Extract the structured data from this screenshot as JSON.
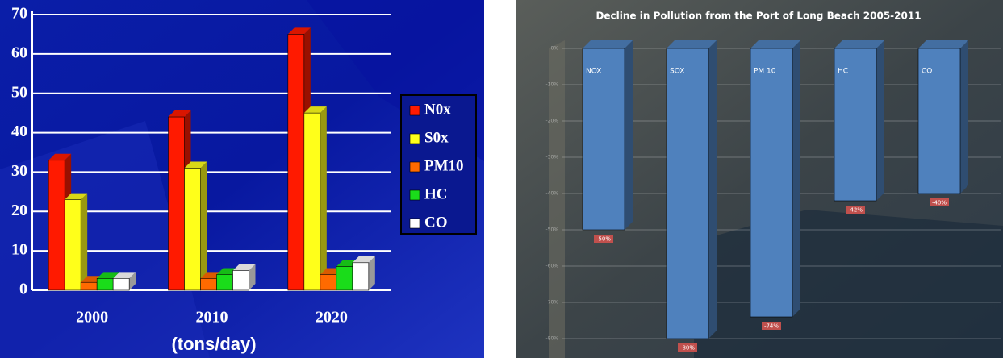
{
  "chart_data": [
    {
      "type": "bar",
      "categories": [
        "2000",
        "2010",
        "2020"
      ],
      "series": [
        {
          "name": "N0x",
          "color": "#ff1a00",
          "values": [
            33,
            44,
            65
          ]
        },
        {
          "name": "S0x",
          "color": "#ffff1a",
          "values": [
            23,
            31,
            45
          ]
        },
        {
          "name": "PM10",
          "color": "#ff6a00",
          "values": [
            2,
            3,
            4
          ]
        },
        {
          "name": "HC",
          "color": "#1adc1a",
          "values": [
            3,
            4,
            6
          ]
        },
        {
          "name": "CO",
          "color": "#ffffff",
          "values": [
            3,
            5,
            7
          ]
        }
      ],
      "ylim": [
        0,
        70
      ],
      "yticks": [
        0,
        10,
        20,
        30,
        40,
        50,
        60,
        70
      ],
      "x_label": "(tons/day)",
      "grid": true,
      "legend": "right"
    },
    {
      "type": "bar",
      "title": "Decline in Pollution from the Port of Long Beach 2005-2011",
      "categories": [
        "NOX",
        "SOX",
        "PM 10",
        "HC",
        "CO"
      ],
      "values": [
        -50,
        -80,
        -74,
        -42,
        -40
      ],
      "value_labels": [
        "-50%",
        "-80%",
        "-74%",
        "-42%",
        "-40%"
      ],
      "color": "#4f81bd",
      "ylim": [
        -80,
        0
      ],
      "yticks": [
        {
          "value": 0,
          "label": "0%"
        },
        {
          "value": -10,
          "label": "-10%"
        },
        {
          "value": -20,
          "label": "-20%"
        },
        {
          "value": -30,
          "label": "-30%"
        },
        {
          "value": -40,
          "label": "-40%"
        },
        {
          "value": -50,
          "label": "-50%"
        },
        {
          "value": -60,
          "label": "-60%"
        },
        {
          "value": -70,
          "label": "-70%"
        },
        {
          "value": -80,
          "label": "-80%"
        }
      ],
      "grid": true
    }
  ]
}
